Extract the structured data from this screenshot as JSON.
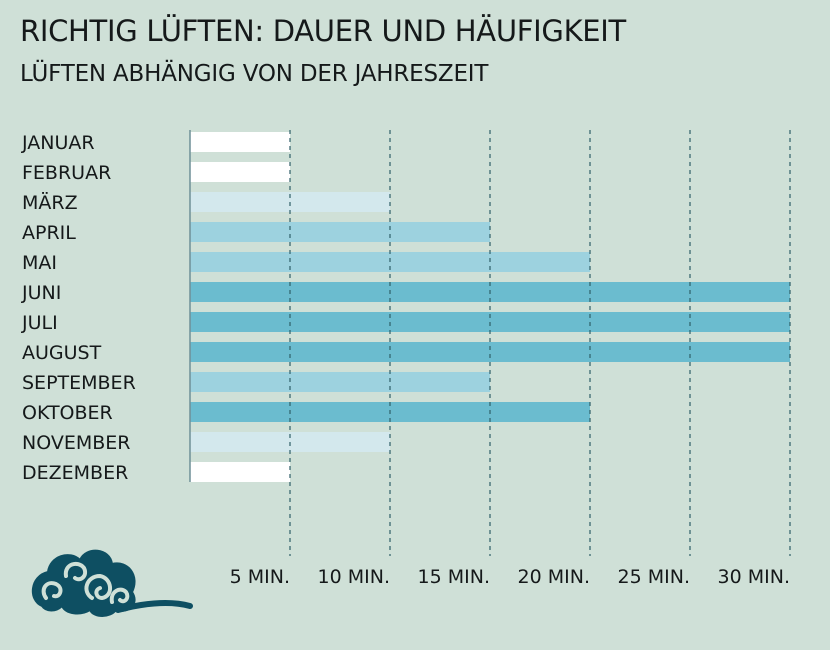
{
  "title": "RICHTIG LÜFTEN: DAUER UND HÄUFIGKEIT",
  "subtitle": "LÜFTEN ABHÄNGIG VON DER JAHRESZEIT",
  "colors": {
    "background": "#cfe0d7",
    "winter": "#ffffff",
    "transition": "#d3e8ed",
    "spring_autumn": "#9dd2df",
    "summer": "#6bbccf",
    "grid": "#2f5f68",
    "logo": "#0e4f62"
  },
  "logo": {
    "icon": "cloud-wind-icon"
  },
  "chart_data": {
    "type": "bar",
    "orientation": "horizontal",
    "title": "RICHTIG LÜFTEN: DAUER UND HÄUFIGKEIT",
    "subtitle": "LÜFTEN ABHÄNGIG VON DER JAHRESZEIT",
    "categories": [
      "JANUAR",
      "FEBRUAR",
      "MÄRZ",
      "APRIL",
      "MAI",
      "JUNI",
      "JULI",
      "AUGUST",
      "SEPTEMBER",
      "OKTOBER",
      "NOVEMBER",
      "DEZEMBER"
    ],
    "values": [
      5,
      5,
      10,
      15,
      20,
      30,
      30,
      30,
      15,
      20,
      10,
      5
    ],
    "bar_colors": [
      "#ffffff",
      "#ffffff",
      "#d3e8ed",
      "#9dd2df",
      "#9dd2df",
      "#6bbccf",
      "#6bbccf",
      "#6bbccf",
      "#9dd2df",
      "#6bbccf",
      "#d3e8ed",
      "#ffffff"
    ],
    "unit": "MIN.",
    "xlim": [
      0,
      30
    ],
    "xticks": [
      5,
      10,
      15,
      20,
      25,
      30
    ],
    "xtick_labels": [
      "5 MIN.",
      "10 MIN.",
      "15 MIN.",
      "20 MIN.",
      "25 MIN.",
      "30 MIN."
    ],
    "grid": "vertical dashed",
    "legend": "none"
  }
}
